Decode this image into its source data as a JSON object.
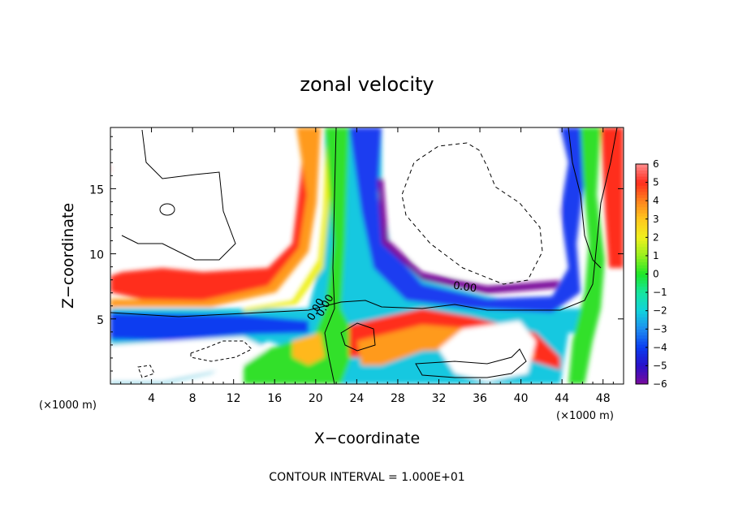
{
  "chart_data": {
    "type": "heatmap",
    "title": "zonal velocity",
    "xlabel": "X−coordinate",
    "ylabel": "Z−coordinate",
    "x_unit_left": "(×1000 m)",
    "x_unit_right": "(×1000 m)",
    "footer": "CONTOUR INTERVAL = 1.000E+01",
    "xlim": [
      0,
      50
    ],
    "ylim": [
      0,
      19.7
    ],
    "x_ticks": [
      4,
      8,
      12,
      16,
      20,
      24,
      28,
      32,
      36,
      40,
      44,
      48
    ],
    "y_ticks": [
      5,
      10,
      15
    ],
    "colorbar": {
      "min": -6,
      "max": 6,
      "ticks": [
        6,
        5,
        4,
        3,
        2,
        1,
        0,
        -1,
        -2,
        -3,
        -4,
        -5,
        -6
      ],
      "tick_labels": [
        "6",
        "5",
        "4",
        "3",
        "2",
        "1",
        "0",
        "−1",
        "−2",
        "−3",
        "−4",
        "−5",
        "−6"
      ],
      "stops": [
        {
          "v": -6,
          "color": "#7b0a9c"
        },
        {
          "v": -5,
          "color": "#2a10c8"
        },
        {
          "v": -4,
          "color": "#0a3cf0"
        },
        {
          "v": -3,
          "color": "#1e8cf0"
        },
        {
          "v": -2,
          "color": "#12d2dc"
        },
        {
          "v": -1,
          "color": "#16e6a0"
        },
        {
          "v": 0,
          "color": "#1ee628"
        },
        {
          "v": 1,
          "color": "#96f01e"
        },
        {
          "v": 2,
          "color": "#f0f01e"
        },
        {
          "v": 3,
          "color": "#ffc81e"
        },
        {
          "v": 4,
          "color": "#ff821e"
        },
        {
          "v": 5,
          "color": "#ff2d1e"
        },
        {
          "v": 6,
          "color": "#ff8c8c"
        }
      ]
    },
    "contour_labels": [
      {
        "text": "0.00",
        "x": 34.5,
        "z": 7.2,
        "angle": 8
      },
      {
        "text": "0.00",
        "x": 20.3,
        "z": 5.6,
        "angle": -60
      },
      {
        "text": "0.00",
        "x": 21.2,
        "z": 5.9,
        "angle": -60
      }
    ]
  }
}
